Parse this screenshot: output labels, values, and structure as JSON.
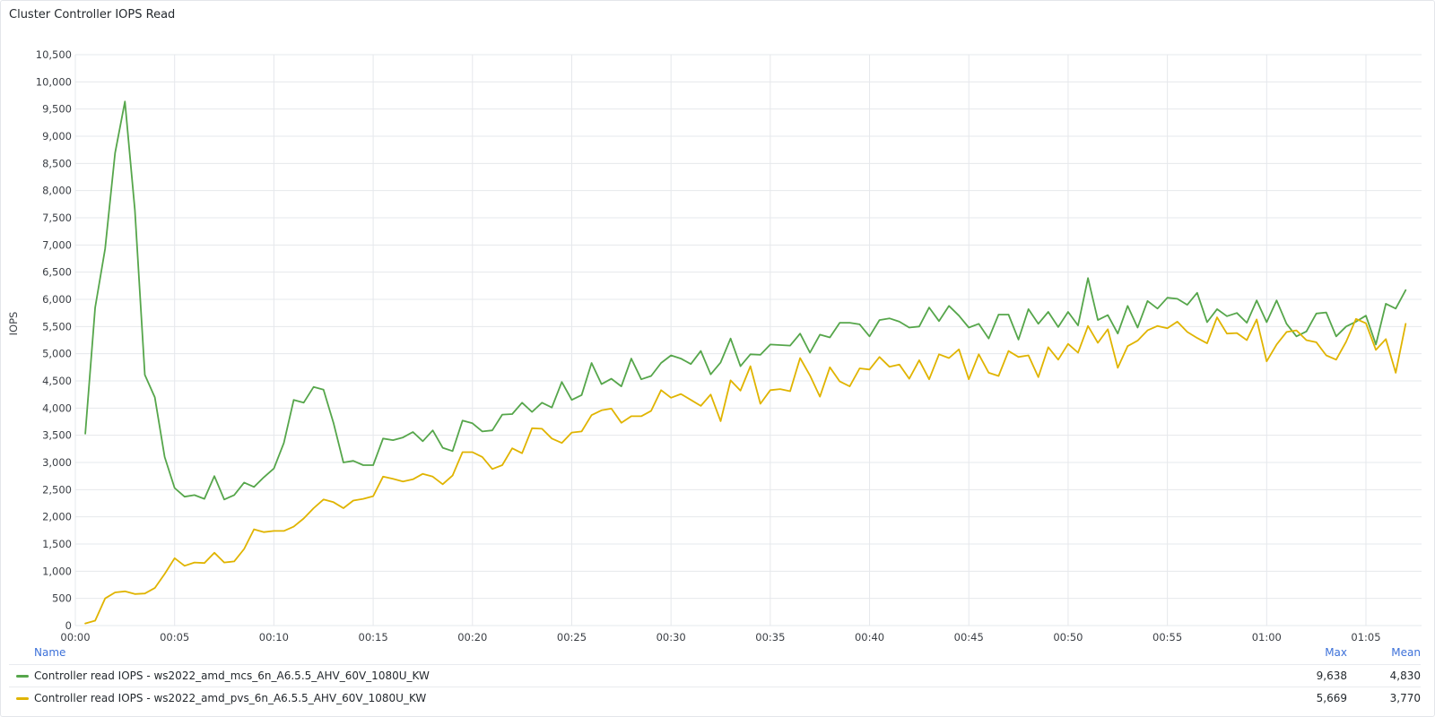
{
  "panel": {
    "title": "Cluster Controller IOPS Read",
    "colors": {
      "grid": "#e6e8ec",
      "axis": "#3b3f45",
      "legend_header": "#3d71d9"
    }
  },
  "legend": {
    "headers": {
      "name": "Name",
      "max": "Max",
      "mean": "Mean"
    },
    "rows": [
      {
        "name": "Controller read IOPS - ws2022_amd_mcs_6n_A6.5.5_AHV_60V_1080U_KW",
        "max": "9,638",
        "mean": "4,830",
        "color": "#56a64b"
      },
      {
        "name": "Controller read IOPS - ws2022_amd_pvs_6n_A6.5.5_AHV_60V_1080U_KW",
        "max": "5,669",
        "mean": "3,770",
        "color": "#e0b400"
      }
    ]
  },
  "chart_data": {
    "type": "line",
    "ylabel": "IOPS",
    "xlabel": "",
    "ylim": [
      0,
      10500
    ],
    "y_ticks": [
      0,
      500,
      1000,
      1500,
      2000,
      2500,
      3000,
      3500,
      4000,
      4500,
      5000,
      5500,
      6000,
      6500,
      7000,
      7500,
      8000,
      8500,
      9000,
      9500,
      10000,
      10500
    ],
    "y_tick_labels": [
      "0",
      "500",
      "1,000",
      "1,500",
      "2,000",
      "2,500",
      "3,000",
      "3,500",
      "4,000",
      "4,500",
      "5,000",
      "5,500",
      "6,000",
      "6,500",
      "7,000",
      "7,500",
      "8,000",
      "8,500",
      "9,000",
      "9,500",
      "10,000",
      "10,500"
    ],
    "x_unit": "minutes",
    "xlim": [
      0,
      67.8
    ],
    "x_ticks": [
      0,
      5,
      10,
      15,
      20,
      25,
      30,
      35,
      40,
      45,
      50,
      55,
      60,
      65
    ],
    "x_tick_labels": [
      "00:00",
      "00:05",
      "00:10",
      "00:15",
      "00:20",
      "00:25",
      "00:30",
      "00:35",
      "00:40",
      "00:45",
      "00:50",
      "00:55",
      "01:00",
      "01:05"
    ],
    "x_start": 0.5,
    "x_step": 0.5,
    "grid": true,
    "legend_position": "bottom",
    "series": [
      {
        "name": "Controller read IOPS - ws2022_amd_mcs_6n_A6.5.5_AHV_60V_1080U_KW",
        "color": "#56a64b",
        "values": [
          3530,
          5850,
          6930,
          8690,
          9638,
          7640,
          4610,
          4200,
          3100,
          2530,
          2370,
          2400,
          2330,
          2750,
          2320,
          2400,
          2630,
          2550,
          2730,
          2890,
          3360,
          4150,
          4100,
          4390,
          4340,
          3730,
          3000,
          3030,
          2950,
          2950,
          3440,
          3410,
          3460,
          3560,
          3390,
          3590,
          3270,
          3210,
          3770,
          3720,
          3570,
          3590,
          3880,
          3890,
          4100,
          3930,
          4100,
          4010,
          4480,
          4150,
          4240,
          4830,
          4440,
          4540,
          4400,
          4910,
          4530,
          4590,
          4830,
          4970,
          4910,
          4810,
          5050,
          4620,
          4840,
          5280,
          4770,
          4990,
          4980,
          5170,
          5160,
          5150,
          5370,
          5020,
          5350,
          5300,
          5570,
          5570,
          5540,
          5320,
          5620,
          5650,
          5590,
          5480,
          5500,
          5850,
          5600,
          5880,
          5700,
          5480,
          5550,
          5280,
          5720,
          5720,
          5260,
          5820,
          5550,
          5770,
          5490,
          5770,
          5520,
          6390,
          5620,
          5710,
          5370,
          5880,
          5480,
          5970,
          5830,
          6030,
          6010,
          5900,
          6120,
          5580,
          5820,
          5690,
          5750,
          5570,
          5980,
          5580,
          5980,
          5550,
          5320,
          5410,
          5740,
          5760,
          5320,
          5500,
          5590,
          5700,
          5170,
          5920,
          5830,
          6170
        ]
      },
      {
        "name": "Controller read IOPS - ws2022_amd_pvs_6n_A6.5.5_AHV_60V_1080U_KW",
        "color": "#e0b400",
        "values": [
          40,
          90,
          500,
          610,
          630,
          580,
          590,
          690,
          950,
          1240,
          1100,
          1160,
          1150,
          1340,
          1160,
          1180,
          1410,
          1770,
          1720,
          1740,
          1740,
          1820,
          1970,
          2160,
          2320,
          2270,
          2160,
          2300,
          2330,
          2380,
          2740,
          2700,
          2650,
          2690,
          2790,
          2740,
          2600,
          2760,
          3190,
          3190,
          3100,
          2880,
          2950,
          3260,
          3170,
          3630,
          3620,
          3440,
          3360,
          3550,
          3570,
          3870,
          3960,
          3990,
          3730,
          3850,
          3850,
          3950,
          4330,
          4190,
          4260,
          4150,
          4040,
          4250,
          3760,
          4510,
          4320,
          4770,
          4080,
          4330,
          4350,
          4310,
          4920,
          4600,
          4210,
          4750,
          4490,
          4400,
          4730,
          4710,
          4940,
          4760,
          4800,
          4540,
          4880,
          4530,
          4990,
          4920,
          5080,
          4530,
          4990,
          4650,
          4590,
          5050,
          4940,
          4970,
          4570,
          5120,
          4890,
          5180,
          5020,
          5510,
          5200,
          5450,
          4740,
          5140,
          5240,
          5430,
          5510,
          5470,
          5590,
          5400,
          5290,
          5190,
          5669,
          5370,
          5380,
          5250,
          5630,
          4860,
          5170,
          5400,
          5430,
          5250,
          5210,
          4970,
          4890,
          5220,
          5640,
          5560,
          5070,
          5270,
          4650,
          5550
        ]
      }
    ]
  }
}
